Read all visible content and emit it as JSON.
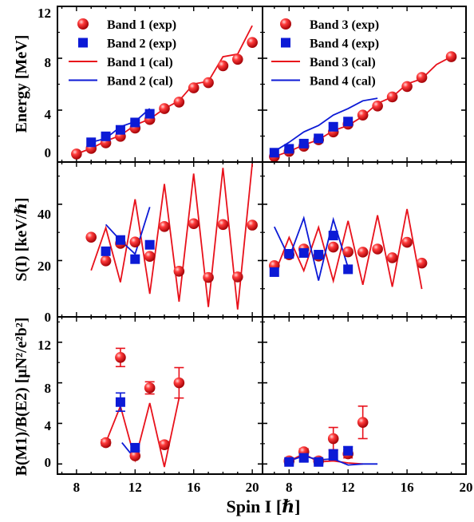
{
  "figure": {
    "xlabel": "Spin I [ℏ]",
    "ylabels": [
      "Energy [MeV]",
      "S(I) [keV/ℏ]",
      "B(M1)/B(E2) [μN²/e²b²]"
    ],
    "xticks_left": [
      "8",
      "12",
      "16",
      "20"
    ],
    "xticks_right": [
      "8",
      "12",
      "16",
      "20"
    ],
    "yticks": [
      [
        "0",
        "4",
        "8",
        "12"
      ],
      [
        "0",
        "20",
        "40"
      ],
      [
        "0",
        "4",
        "8",
        "12"
      ]
    ],
    "legend_left": [
      "Band 1 (exp)",
      "Band 2 (exp)",
      "Band 1 (cal)",
      "Band 2 (cal)"
    ],
    "legend_right": [
      "Band 3 (exp)",
      "Band 4 (exp)",
      "Band 3 (cal)",
      "Band 4 (cal)"
    ],
    "colors": {
      "red": "#e8111b",
      "blue": "#0c1ad6"
    }
  },
  "chart_data": [
    {
      "type": "scatter",
      "panel": "energy-left",
      "xlim": [
        6.7,
        20.7
      ],
      "ylim": [
        0,
        12
      ],
      "ylabel": "Energy [MeV]",
      "series": [
        {
          "name": "Band 1 (exp)",
          "style": "marker",
          "color": "#e8111b",
          "x": [
            8,
            9,
            10,
            11,
            12,
            13,
            14,
            15,
            16,
            17,
            18,
            19,
            20
          ],
          "y": [
            0.62,
            1.05,
            1.48,
            1.98,
            2.62,
            3.28,
            4.12,
            4.62,
            5.72,
            6.12,
            7.42,
            7.92,
            9.22
          ]
        },
        {
          "name": "Band 2 (exp)",
          "style": "square",
          "color": "#0c1ad6",
          "x": [
            9,
            10,
            11,
            12,
            13
          ],
          "y": [
            1.52,
            1.98,
            2.48,
            3.05,
            3.72
          ]
        },
        {
          "name": "Band 1 (cal)",
          "style": "line",
          "color": "#e8111b",
          "x": [
            8,
            9,
            10,
            11,
            12,
            13,
            14,
            15,
            16,
            17,
            18,
            19,
            20
          ],
          "y": [
            0.62,
            1.05,
            1.62,
            2.05,
            2.85,
            3.32,
            4.12,
            4.72,
            6.02,
            6.22,
            8.12,
            8.32,
            10.52
          ]
        },
        {
          "name": "Band 2 (cal)",
          "style": "line",
          "color": "#0c1ad6",
          "x": [
            9,
            10,
            11,
            12,
            13
          ],
          "y": [
            1.52,
            1.82,
            2.72,
            3.12,
            4.12
          ]
        }
      ]
    },
    {
      "type": "scatter",
      "panel": "energy-right",
      "xlim": [
        6.2,
        20
      ],
      "ylim": [
        0,
        12
      ],
      "series": [
        {
          "name": "Band 3 (exp)",
          "style": "marker",
          "color": "#e8111b",
          "x": [
            7,
            8,
            9,
            10,
            11,
            12,
            13,
            14,
            15,
            16,
            17,
            19
          ],
          "y": [
            0.42,
            0.82,
            1.22,
            1.72,
            2.32,
            2.92,
            3.62,
            4.32,
            5.02,
            5.82,
            6.52,
            8.12
          ]
        },
        {
          "name": "Band 4 (exp)",
          "style": "square",
          "color": "#0c1ad6",
          "x": [
            7,
            8,
            9,
            10,
            11,
            12
          ],
          "y": [
            0.72,
            1.02,
            1.42,
            1.82,
            2.72,
            3.12
          ]
        },
        {
          "name": "Band 3 (cal)",
          "style": "line",
          "color": "#e8111b",
          "x": [
            7,
            8,
            9,
            10,
            11,
            12,
            13,
            14,
            15,
            16,
            17,
            18,
            19
          ],
          "y": [
            0.42,
            0.82,
            1.32,
            1.72,
            2.42,
            2.82,
            3.52,
            4.52,
            5.02,
            6.02,
            6.42,
            7.52,
            8.12
          ]
        },
        {
          "name": "Band 4 (cal)",
          "style": "line",
          "color": "#0c1ad6",
          "x": [
            7,
            8,
            9,
            10,
            11,
            12,
            13,
            14
          ],
          "y": [
            0.82,
            1.52,
            2.32,
            2.82,
            3.62,
            4.12,
            4.72,
            4.92
          ]
        }
      ]
    },
    {
      "type": "scatter",
      "panel": "s-left",
      "xlim": [
        6.7,
        20.7
      ],
      "ylim": [
        0,
        55
      ],
      "ylabel": "S(I) [keV/ℏ]",
      "series": [
        {
          "name": "Band 1 (exp)",
          "style": "marker",
          "color": "#e8111b",
          "x": [
            9,
            10,
            11,
            12,
            13,
            14,
            15,
            16,
            17,
            18,
            19,
            20
          ],
          "y": [
            28.3,
            19.9,
            26.1,
            26.6,
            21.5,
            32.1,
            16.2,
            33.1,
            14.0,
            32.8,
            14.2,
            32.6
          ]
        },
        {
          "name": "Band 2 (exp)",
          "style": "square",
          "color": "#0c1ad6",
          "x": [
            10,
            11,
            12,
            13
          ],
          "y": [
            23.3,
            27.3,
            20.5,
            25.6
          ]
        },
        {
          "name": "Band 1 (cal)",
          "style": "line",
          "color": "#e8111b",
          "x": [
            9,
            10,
            11,
            12,
            13,
            14,
            15,
            16,
            17,
            18,
            19,
            20
          ],
          "y": [
            16.5,
            31.6,
            12.3,
            41.8,
            8.2,
            47.2,
            5.4,
            50.9,
            3.5,
            52.9,
            2.6,
            54.4
          ]
        },
        {
          "name": "Band 2 (cal)",
          "style": "line",
          "color": "#0c1ad6",
          "x": [
            10,
            11,
            12,
            13
          ],
          "y": [
            32.8,
            27.2,
            22.3,
            39.0
          ]
        }
      ]
    },
    {
      "type": "scatter",
      "panel": "s-right",
      "xlim": [
        6.2,
        20
      ],
      "ylim": [
        0,
        55
      ],
      "series": [
        {
          "name": "Band 3 (exp)",
          "style": "marker",
          "color": "#e8111b",
          "x": [
            7,
            8,
            9,
            10,
            11,
            12,
            13,
            14,
            15,
            16,
            17
          ],
          "y": [
            18.2,
            22.1,
            24.1,
            21.6,
            24.8,
            23.1,
            23.0,
            24.1,
            21.0,
            26.5,
            19.1
          ]
        },
        {
          "name": "Band 4 (exp)",
          "style": "square",
          "color": "#0c1ad6",
          "x": [
            7,
            8,
            9,
            10,
            11,
            12
          ],
          "y": [
            15.9,
            22.4,
            22.7,
            22.1,
            28.9,
            16.9
          ]
        },
        {
          "name": "Band 3 (cal)",
          "style": "line",
          "color": "#e8111b",
          "x": [
            7,
            8,
            9,
            10,
            11,
            12,
            13,
            14,
            15,
            16,
            17
          ],
          "y": [
            15.0,
            28.2,
            16.4,
            31.8,
            12.8,
            34.1,
            11.4,
            36.1,
            10.7,
            38.3,
            9.9
          ]
        },
        {
          "name": "Band 4 (cal)",
          "style": "line",
          "color": "#0c1ad6",
          "x": [
            7,
            8,
            9,
            10,
            11,
            12
          ],
          "y": [
            32.0,
            21.0,
            35.1,
            12.9,
            34.6,
            17.5
          ]
        }
      ]
    },
    {
      "type": "scatter",
      "panel": "b-left",
      "xlim": [
        6.7,
        20.7
      ],
      "ylim": [
        -1,
        14.5
      ],
      "ylabel": "B(M1)/B(E2) [μN²/e²b²]",
      "series": [
        {
          "name": "Band 1 (exp)",
          "style": "marker",
          "color": "#e8111b",
          "x": [
            10,
            11,
            12,
            13,
            14,
            15
          ],
          "y": [
            2.1,
            10.5,
            0.8,
            7.5,
            1.9,
            8.0
          ],
          "err": [
            0.3,
            0.9,
            0.2,
            0.6,
            0.3,
            1.5
          ]
        },
        {
          "name": "Band 2 (exp)",
          "style": "square",
          "color": "#0c1ad6",
          "x": [
            11,
            12
          ],
          "y": [
            6.1,
            1.6
          ],
          "err": [
            0.9,
            0.3
          ]
        },
        {
          "name": "Band 1 (cal)",
          "style": "line",
          "color": "#e8111b",
          "x": [
            10,
            11,
            12,
            13,
            14,
            15
          ],
          "y": [
            2.1,
            5.7,
            0.4,
            6.0,
            -0.3,
            6.5
          ]
        },
        {
          "name": "Band 2 (cal)",
          "style": "line",
          "color": "#0c1ad6",
          "x": [
            11.1,
            12
          ],
          "y": [
            2.1,
            0.5
          ]
        }
      ]
    },
    {
      "type": "scatter",
      "panel": "b-right",
      "xlim": [
        6.2,
        20
      ],
      "ylim": [
        -1,
        14.5
      ],
      "series": [
        {
          "name": "Band 3 (exp)",
          "style": "marker",
          "color": "#e8111b",
          "x": [
            8,
            9,
            10,
            11,
            12,
            13
          ],
          "y": [
            0.3,
            1.2,
            0.3,
            2.5,
            1.0,
            4.1
          ],
          "err": [
            0.2,
            0.3,
            0.2,
            1.1,
            0.4,
            1.6
          ]
        },
        {
          "name": "Band 4 (exp)",
          "style": "square",
          "color": "#0c1ad6",
          "x": [
            8,
            9,
            10,
            11,
            12
          ],
          "y": [
            0.2,
            0.6,
            0.2,
            0.9,
            1.3
          ],
          "err": [
            0.2,
            0.3,
            0.2,
            0.5,
            0.4
          ]
        },
        {
          "name": "Band 3 (cal)",
          "style": "line",
          "color": "#e8111b",
          "x": [
            8,
            9,
            10,
            11,
            12,
            13
          ],
          "y": [
            0.3,
            1.0,
            0.2,
            0.3,
            0.1,
            0.0
          ]
        },
        {
          "name": "Band 4 (cal)",
          "style": "line",
          "color": "#0c1ad6",
          "x": [
            8,
            9,
            10,
            11,
            12,
            13,
            14
          ],
          "y": [
            0.3,
            0.8,
            0.4,
            0.5,
            -0.1,
            0.0,
            0.0
          ]
        }
      ]
    }
  ]
}
